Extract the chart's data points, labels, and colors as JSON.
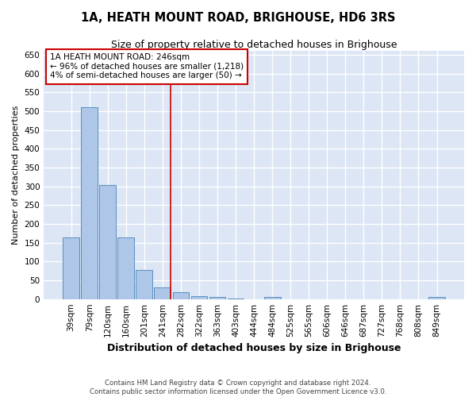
{
  "title": "1A, HEATH MOUNT ROAD, BRIGHOUSE, HD6 3RS",
  "subtitle": "Size of property relative to detached houses in Brighouse",
  "xlabel": "Distribution of detached houses by size in Brighouse",
  "ylabel": "Number of detached properties",
  "categories": [
    "39sqm",
    "79sqm",
    "120sqm",
    "160sqm",
    "201sqm",
    "241sqm",
    "282sqm",
    "322sqm",
    "363sqm",
    "403sqm",
    "444sqm",
    "484sqm",
    "525sqm",
    "565sqm",
    "606sqm",
    "646sqm",
    "687sqm",
    "727sqm",
    "768sqm",
    "808sqm",
    "849sqm"
  ],
  "values": [
    165,
    510,
    303,
    165,
    78,
    30,
    18,
    8,
    5,
    1,
    0,
    5,
    0,
    0,
    0,
    0,
    0,
    0,
    0,
    0,
    5
  ],
  "bar_color": "#aec6e8",
  "bar_edge_color": "#5a8fc0",
  "vline_x": 5.45,
  "vline_color": "#cc0000",
  "annotation_title": "1A HEATH MOUNT ROAD: 246sqm",
  "annotation_line1": "← 96% of detached houses are smaller (1,218)",
  "annotation_line2": "4% of semi-detached houses are larger (50) →",
  "annotation_box_color": "#cc0000",
  "ylim": [
    0,
    660
  ],
  "yticks": [
    0,
    50,
    100,
    150,
    200,
    250,
    300,
    350,
    400,
    450,
    500,
    550,
    600,
    650
  ],
  "bg_color": "#dce6f5",
  "grid_color": "#ffffff",
  "title_fontsize": 10.5,
  "subtitle_fontsize": 9,
  "ylabel_fontsize": 8,
  "xlabel_fontsize": 9,
  "tick_fontsize": 7.5,
  "footer1": "Contains HM Land Registry data © Crown copyright and database right 2024.",
  "footer2": "Contains public sector information licensed under the Open Government Licence v3.0."
}
